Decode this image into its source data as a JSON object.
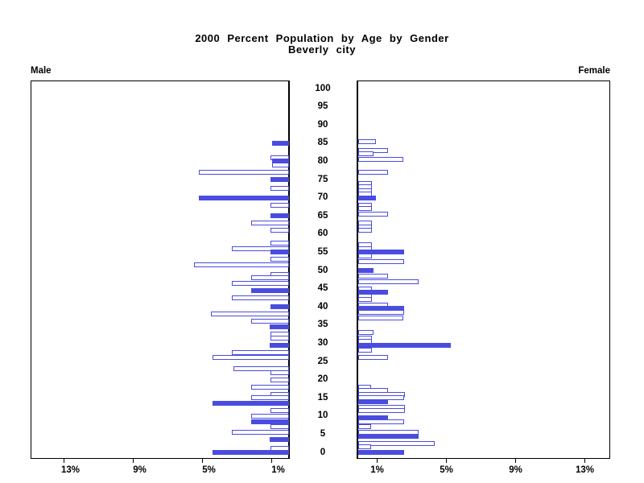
{
  "title": {
    "line1": "2000 Percent Population by Age by Gender",
    "line2": "Beverly city"
  },
  "side_labels": {
    "left": "Male",
    "right": "Female"
  },
  "colors": {
    "bar_blue": "#4a4ce0",
    "axis_black": "#000000",
    "background": "#ffffff"
  },
  "chart_data": {
    "type": "bar",
    "subtype": "population-pyramid",
    "title": "2000 Percent Population by Age by Gender",
    "subtitle": "Beverly city",
    "ylabel": "Age",
    "xlabel": "Percent of population",
    "grid": false,
    "legend": "none",
    "y_axis": {
      "ticks": [
        0,
        5,
        10,
        15,
        20,
        25,
        30,
        35,
        40,
        45,
        50,
        55,
        60,
        65,
        70,
        75,
        80,
        85,
        90,
        95,
        100
      ],
      "range": [
        0,
        100
      ]
    },
    "x_axis_left": {
      "side": "Male",
      "tick_labels": [
        "13%",
        "9%",
        "5%",
        "1%"
      ],
      "tick_values": [
        13,
        9,
        5,
        1
      ],
      "range": [
        0,
        15
      ],
      "direction": "right-to-left"
    },
    "x_axis_right": {
      "side": "Female",
      "tick_labels": [
        "1%",
        "5%",
        "9%",
        "13%"
      ],
      "tick_values": [
        1,
        5,
        9,
        13
      ],
      "range": [
        0,
        15
      ],
      "direction": "left-to-right"
    },
    "bar_styles": {
      "hollow": "outlined white bar",
      "solid": "filled blue bar"
    },
    "series": [
      {
        "name": "Male",
        "bars": [
          {
            "age": 85,
            "value": 1.0,
            "filled": true
          },
          {
            "age": 81,
            "value": 1.05,
            "filled": false
          },
          {
            "age": 80,
            "value": 1.0,
            "filled": true
          },
          {
            "age": 79,
            "value": 1.0,
            "filled": false
          },
          {
            "age": 77,
            "value": 5.2,
            "filled": false
          },
          {
            "age": 75,
            "value": 1.05,
            "filled": true
          },
          {
            "age": 72.5,
            "value": 1.05,
            "filled": false
          },
          {
            "age": 70,
            "value": 5.2,
            "filled": true
          },
          {
            "age": 68,
            "value": 1.05,
            "filled": false
          },
          {
            "age": 65,
            "value": 1.05,
            "filled": true
          },
          {
            "age": 63,
            "value": 2.2,
            "filled": false
          },
          {
            "age": 61,
            "value": 1.05,
            "filled": false
          },
          {
            "age": 57.5,
            "value": 1.05,
            "filled": false
          },
          {
            "age": 56,
            "value": 3.3,
            "filled": false
          },
          {
            "age": 55,
            "value": 1.05,
            "filled": true
          },
          {
            "age": 53,
            "value": 1.05,
            "filled": false
          },
          {
            "age": 51.5,
            "value": 5.5,
            "filled": false
          },
          {
            "age": 49,
            "value": 1.05,
            "filled": false
          },
          {
            "age": 48,
            "value": 2.2,
            "filled": false
          },
          {
            "age": 46.5,
            "value": 3.3,
            "filled": false
          },
          {
            "age": 44.5,
            "value": 2.2,
            "filled": true
          },
          {
            "age": 42.5,
            "value": 3.3,
            "filled": false
          },
          {
            "age": 40,
            "value": 1.05,
            "filled": true
          },
          {
            "age": 38,
            "value": 4.5,
            "filled": false
          },
          {
            "age": 36,
            "value": 2.2,
            "filled": false
          },
          {
            "age": 34.5,
            "value": 1.1,
            "filled": true
          },
          {
            "age": 32.5,
            "value": 1.05,
            "filled": false
          },
          {
            "age": 31.5,
            "value": 1.05,
            "filled": false
          },
          {
            "age": 29.5,
            "value": 1.1,
            "filled": true
          },
          {
            "age": 27.5,
            "value": 3.3,
            "filled": false
          },
          {
            "age": 26,
            "value": 4.4,
            "filled": false
          },
          {
            "age": 23,
            "value": 3.2,
            "filled": false
          },
          {
            "age": 22,
            "value": 1.05,
            "filled": false
          },
          {
            "age": 20,
            "value": 1.05,
            "filled": false
          },
          {
            "age": 18,
            "value": 2.2,
            "filled": false
          },
          {
            "age": 16,
            "value": 1.05,
            "filled": false
          },
          {
            "age": 15,
            "value": 2.2,
            "filled": false
          },
          {
            "age": 13.5,
            "value": 4.4,
            "filled": true
          },
          {
            "age": 11.5,
            "value": 1.05,
            "filled": false
          },
          {
            "age": 10,
            "value": 2.2,
            "filled": false
          },
          {
            "age": 8.5,
            "value": 2.2,
            "filled": true
          },
          {
            "age": 7,
            "value": 1.05,
            "filled": false
          },
          {
            "age": 5.5,
            "value": 3.3,
            "filled": false
          },
          {
            "age": 3.5,
            "value": 1.1,
            "filled": true
          },
          {
            "age": 1,
            "value": 1.05,
            "filled": false
          },
          {
            "age": 0,
            "value": 4.4,
            "filled": true
          }
        ]
      },
      {
        "name": "Female",
        "bars": [
          {
            "age": 85.5,
            "value": 1.0,
            "filled": false
          },
          {
            "age": 83,
            "value": 1.7,
            "filled": false
          },
          {
            "age": 82,
            "value": 0.9,
            "filled": false
          },
          {
            "age": 80.5,
            "value": 2.6,
            "filled": false
          },
          {
            "age": 77,
            "value": 1.7,
            "filled": false
          },
          {
            "age": 74,
            "value": 0.8,
            "filled": false
          },
          {
            "age": 73,
            "value": 0.8,
            "filled": false
          },
          {
            "age": 72,
            "value": 0.8,
            "filled": false
          },
          {
            "age": 71,
            "value": 0.8,
            "filled": false
          },
          {
            "age": 70,
            "value": 1.0,
            "filled": true
          },
          {
            "age": 68,
            "value": 0.8,
            "filled": false
          },
          {
            "age": 67,
            "value": 0.8,
            "filled": false
          },
          {
            "age": 65.5,
            "value": 1.7,
            "filled": false
          },
          {
            "age": 63,
            "value": 0.8,
            "filled": false
          },
          {
            "age": 62,
            "value": 0.8,
            "filled": false
          },
          {
            "age": 61,
            "value": 0.8,
            "filled": false
          },
          {
            "age": 57,
            "value": 0.8,
            "filled": false
          },
          {
            "age": 56,
            "value": 0.8,
            "filled": false
          },
          {
            "age": 55,
            "value": 2.65,
            "filled": true
          },
          {
            "age": 54,
            "value": 0.8,
            "filled": false
          },
          {
            "age": 52.5,
            "value": 2.65,
            "filled": false
          },
          {
            "age": 50,
            "value": 0.9,
            "filled": true
          },
          {
            "age": 48.5,
            "value": 1.7,
            "filled": false
          },
          {
            "age": 47,
            "value": 3.5,
            "filled": false
          },
          {
            "age": 45,
            "value": 0.8,
            "filled": false
          },
          {
            "age": 44,
            "value": 1.7,
            "filled": true
          },
          {
            "age": 43,
            "value": 0.8,
            "filled": false
          },
          {
            "age": 42,
            "value": 0.8,
            "filled": false
          },
          {
            "age": 40.5,
            "value": 1.7,
            "filled": false
          },
          {
            "age": 39.5,
            "value": 2.65,
            "filled": true
          },
          {
            "age": 38.5,
            "value": 2.65,
            "filled": false
          },
          {
            "age": 37,
            "value": 2.6,
            "filled": false
          },
          {
            "age": 33,
            "value": 0.9,
            "filled": false
          },
          {
            "age": 31.5,
            "value": 0.8,
            "filled": false
          },
          {
            "age": 30.5,
            "value": 0.8,
            "filled": false
          },
          {
            "age": 29.5,
            "value": 5.35,
            "filled": true
          },
          {
            "age": 28,
            "value": 0.8,
            "filled": false
          },
          {
            "age": 26,
            "value": 1.7,
            "filled": false
          },
          {
            "age": 18,
            "value": 0.75,
            "filled": false
          },
          {
            "age": 17,
            "value": 1.7,
            "filled": false
          },
          {
            "age": 16,
            "value": 2.7,
            "filled": false
          },
          {
            "age": 15,
            "value": 2.65,
            "filled": false
          },
          {
            "age": 14,
            "value": 1.7,
            "filled": true
          },
          {
            "age": 12.5,
            "value": 2.7,
            "filled": false
          },
          {
            "age": 11.5,
            "value": 2.7,
            "filled": false
          },
          {
            "age": 9.5,
            "value": 1.7,
            "filled": true
          },
          {
            "age": 8.5,
            "value": 2.65,
            "filled": false
          },
          {
            "age": 7,
            "value": 0.75,
            "filled": false
          },
          {
            "age": 5.5,
            "value": 3.5,
            "filled": false
          },
          {
            "age": 4.5,
            "value": 3.5,
            "filled": true
          },
          {
            "age": 2.5,
            "value": 4.4,
            "filled": false
          },
          {
            "age": 1.5,
            "value": 0.75,
            "filled": false
          },
          {
            "age": 0,
            "value": 2.65,
            "filled": true
          }
        ]
      }
    ]
  }
}
